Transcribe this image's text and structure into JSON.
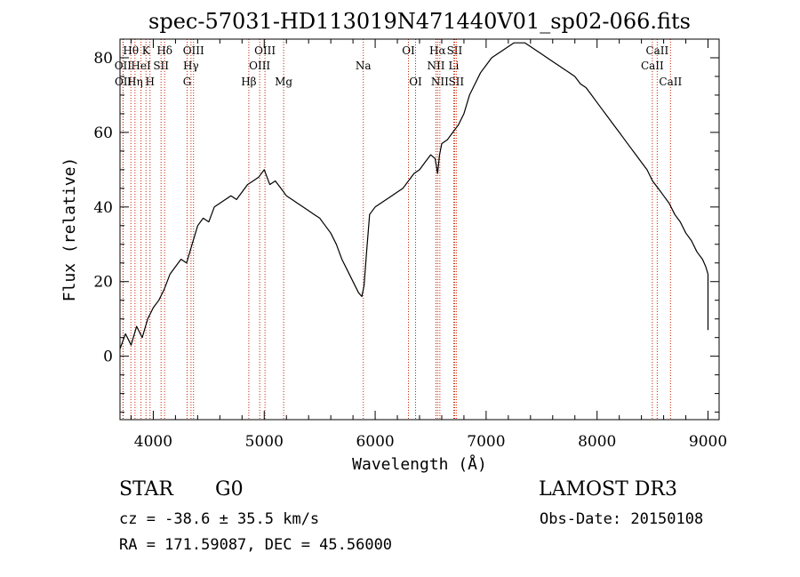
{
  "chart_data": {
    "type": "line",
    "title": "spec-57031-HD113019N471440V01_sp02-066.fits",
    "xlabel": "Wavelength (Å)",
    "ylabel": "Flux (relative)",
    "xlim": [
      3700,
      9100
    ],
    "ylim": [
      -17,
      85
    ],
    "xticks": [
      4000,
      5000,
      6000,
      7000,
      8000,
      9000
    ],
    "yticks": [
      0,
      20,
      40,
      60,
      80
    ],
    "grid": false,
    "series": [
      {
        "name": "spectrum",
        "x": [
          3700,
          3750,
          3800,
          3850,
          3900,
          3950,
          4000,
          4050,
          4100,
          4150,
          4200,
          4250,
          4300,
          4350,
          4400,
          4450,
          4500,
          4550,
          4600,
          4650,
          4700,
          4750,
          4800,
          4850,
          4900,
          4950,
          5000,
          5050,
          5100,
          5150,
          5200,
          5250,
          5300,
          5350,
          5400,
          5450,
          5500,
          5550,
          5600,
          5650,
          5700,
          5750,
          5800,
          5850,
          5880,
          5900,
          5920,
          5950,
          6000,
          6050,
          6100,
          6150,
          6200,
          6250,
          6300,
          6350,
          6400,
          6450,
          6500,
          6540,
          6563,
          6580,
          6600,
          6650,
          6700,
          6750,
          6800,
          6850,
          6900,
          6950,
          7000,
          7050,
          7100,
          7150,
          7200,
          7250,
          7300,
          7350,
          7400,
          7450,
          7500,
          7550,
          7600,
          7650,
          7700,
          7750,
          7800,
          7850,
          7900,
          7950,
          8000,
          8050,
          8100,
          8150,
          8200,
          8250,
          8300,
          8350,
          8400,
          8450,
          8500,
          8550,
          8600,
          8650,
          8700,
          8750,
          8800,
          8850,
          8900,
          8950,
          8980,
          9000,
          9000
        ],
        "y": [
          2,
          6,
          3,
          8,
          5,
          10,
          13,
          15,
          18,
          22,
          24,
          26,
          25,
          30,
          35,
          37,
          36,
          40,
          41,
          42,
          43,
          42,
          44,
          46,
          47,
          48,
          50,
          46,
          47,
          45,
          43,
          42,
          41,
          40,
          39,
          38,
          37,
          35,
          33,
          30,
          26,
          23,
          20,
          17,
          16,
          19,
          27,
          38,
          40,
          41,
          42,
          43,
          44,
          45,
          47,
          49,
          50,
          52,
          54,
          53,
          49,
          54,
          57,
          58,
          60,
          62,
          65,
          70,
          73,
          76,
          78,
          80,
          81,
          82,
          83,
          84,
          84,
          84,
          83,
          82,
          81,
          80,
          79,
          78,
          77,
          76,
          75,
          73,
          72,
          70,
          68,
          66,
          64,
          62,
          60,
          58,
          56,
          54,
          52,
          50,
          47,
          45,
          43,
          41,
          38,
          36,
          33,
          31,
          28,
          26,
          24,
          22,
          7
        ]
      }
    ],
    "line_markers": [
      {
        "label": "Hθ",
        "x": 3798,
        "row": 1
      },
      {
        "label": "OII",
        "x": 3727,
        "row": 2
      },
      {
        "label": "OII",
        "x": 3729,
        "row": 3
      },
      {
        "label": "K",
        "x": 3934,
        "row": 1
      },
      {
        "label": "HeI",
        "x": 3889,
        "row": 2
      },
      {
        "label": "Hη",
        "x": 3835,
        "row": 3
      },
      {
        "label": "H",
        "x": 3970,
        "row": 3
      },
      {
        "label": "Hδ",
        "x": 4102,
        "row": 1
      },
      {
        "label": "SII",
        "x": 4070,
        "row": 2
      },
      {
        "label": "OIII",
        "x": 4363,
        "row": 1
      },
      {
        "label": "Hγ",
        "x": 4340,
        "row": 2
      },
      {
        "label": "G",
        "x": 4305,
        "row": 3
      },
      {
        "label": "OIII",
        "x": 5007,
        "row": 1
      },
      {
        "label": "OIII",
        "x": 4959,
        "row": 2
      },
      {
        "label": "Hβ",
        "x": 4861,
        "row": 3
      },
      {
        "label": "Mg",
        "x": 5175,
        "row": 3
      },
      {
        "label": "Na",
        "x": 5893,
        "row": 2
      },
      {
        "label": "OI",
        "x": 6300,
        "row": 1
      },
      {
        "label": "OI",
        "x": 6364,
        "row": 3
      },
      {
        "label": "Hα",
        "x": 6563,
        "row": 1
      },
      {
        "label": "NII",
        "x": 6548,
        "row": 2
      },
      {
        "label": "NII",
        "x": 6583,
        "row": 3
      },
      {
        "label": "SII",
        "x": 6716,
        "row": 1
      },
      {
        "label": "Li",
        "x": 6708,
        "row": 2
      },
      {
        "label": "SII",
        "x": 6731,
        "row": 3
      },
      {
        "label": "CaII",
        "x": 8542,
        "row": 1
      },
      {
        "label": "CaII",
        "x": 8498,
        "row": 2
      },
      {
        "label": "CaII",
        "x": 8662,
        "row": 3
      }
    ]
  },
  "info": {
    "class_label": "STAR",
    "subclass": "G0",
    "survey": "LAMOST DR3",
    "cz": "cz = -38.6 ± 35.5 km/s",
    "obs_date": "Obs-Date: 20150108",
    "coords": "RA = 171.59087, DEC =  45.56000"
  },
  "colors": {
    "line": "#000000",
    "marker": "#cc2200"
  }
}
